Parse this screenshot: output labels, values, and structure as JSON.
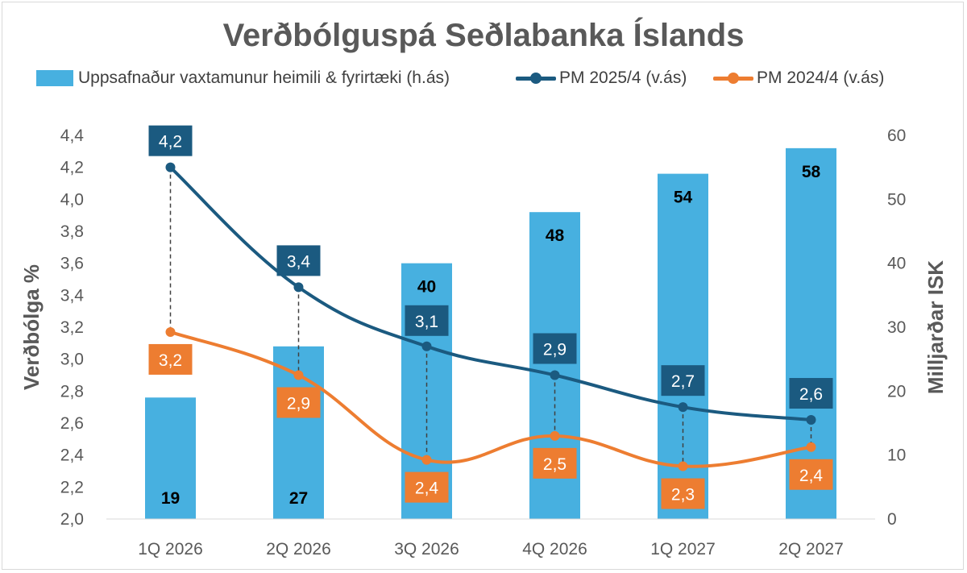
{
  "colors": {
    "bars": "#47b0e0",
    "pm2025": "#1b5a80",
    "pm2024": "#ed7d31",
    "text": "#595959"
  },
  "chart_data": {
    "type": "bar+line",
    "title": "Verðbólguspá Seðlabanka Íslands",
    "categories": [
      "1Q 2026",
      "2Q 2026",
      "3Q 2026",
      "4Q 2026",
      "1Q 2027",
      "2Q 2027"
    ],
    "y_left": {
      "label": "Verðbólga %",
      "ylim": [
        2.0,
        4.4
      ],
      "ticks": [
        "2,0",
        "2,2",
        "2,4",
        "2,6",
        "2,8",
        "3,0",
        "3,2",
        "3,4",
        "3,6",
        "3,8",
        "4,0",
        "4,2",
        "4,4"
      ]
    },
    "y_right": {
      "label": "Milljarðar ISK",
      "ylim": [
        0,
        60
      ],
      "ticks": [
        "0",
        "10",
        "20",
        "30",
        "40",
        "50",
        "60"
      ]
    },
    "series": [
      {
        "name": "Uppsafnaður vaxtamunur heimili & fyrirtæki (h.ás)",
        "type": "bar",
        "axis": "right",
        "values": [
          19,
          27,
          40,
          48,
          54,
          58
        ],
        "labels": [
          "19",
          "27",
          "40",
          "48",
          "54",
          "58"
        ]
      },
      {
        "name": "PM 2025/4 (v.ás)",
        "type": "line",
        "axis": "left",
        "values": [
          4.2,
          3.45,
          3.08,
          2.9,
          2.7,
          2.62
        ],
        "labels": [
          "4,2",
          "3,4",
          "3,1",
          "2,9",
          "2,7",
          "2,6"
        ]
      },
      {
        "name": "PM 2024/4 (v.ás)",
        "type": "line",
        "axis": "left",
        "values": [
          3.17,
          2.9,
          2.37,
          2.52,
          2.33,
          2.45
        ],
        "labels": [
          "3,2",
          "2,9",
          "2,4",
          "2,5",
          "2,3",
          "2,4"
        ]
      }
    ],
    "legend": "top",
    "grid": false
  }
}
